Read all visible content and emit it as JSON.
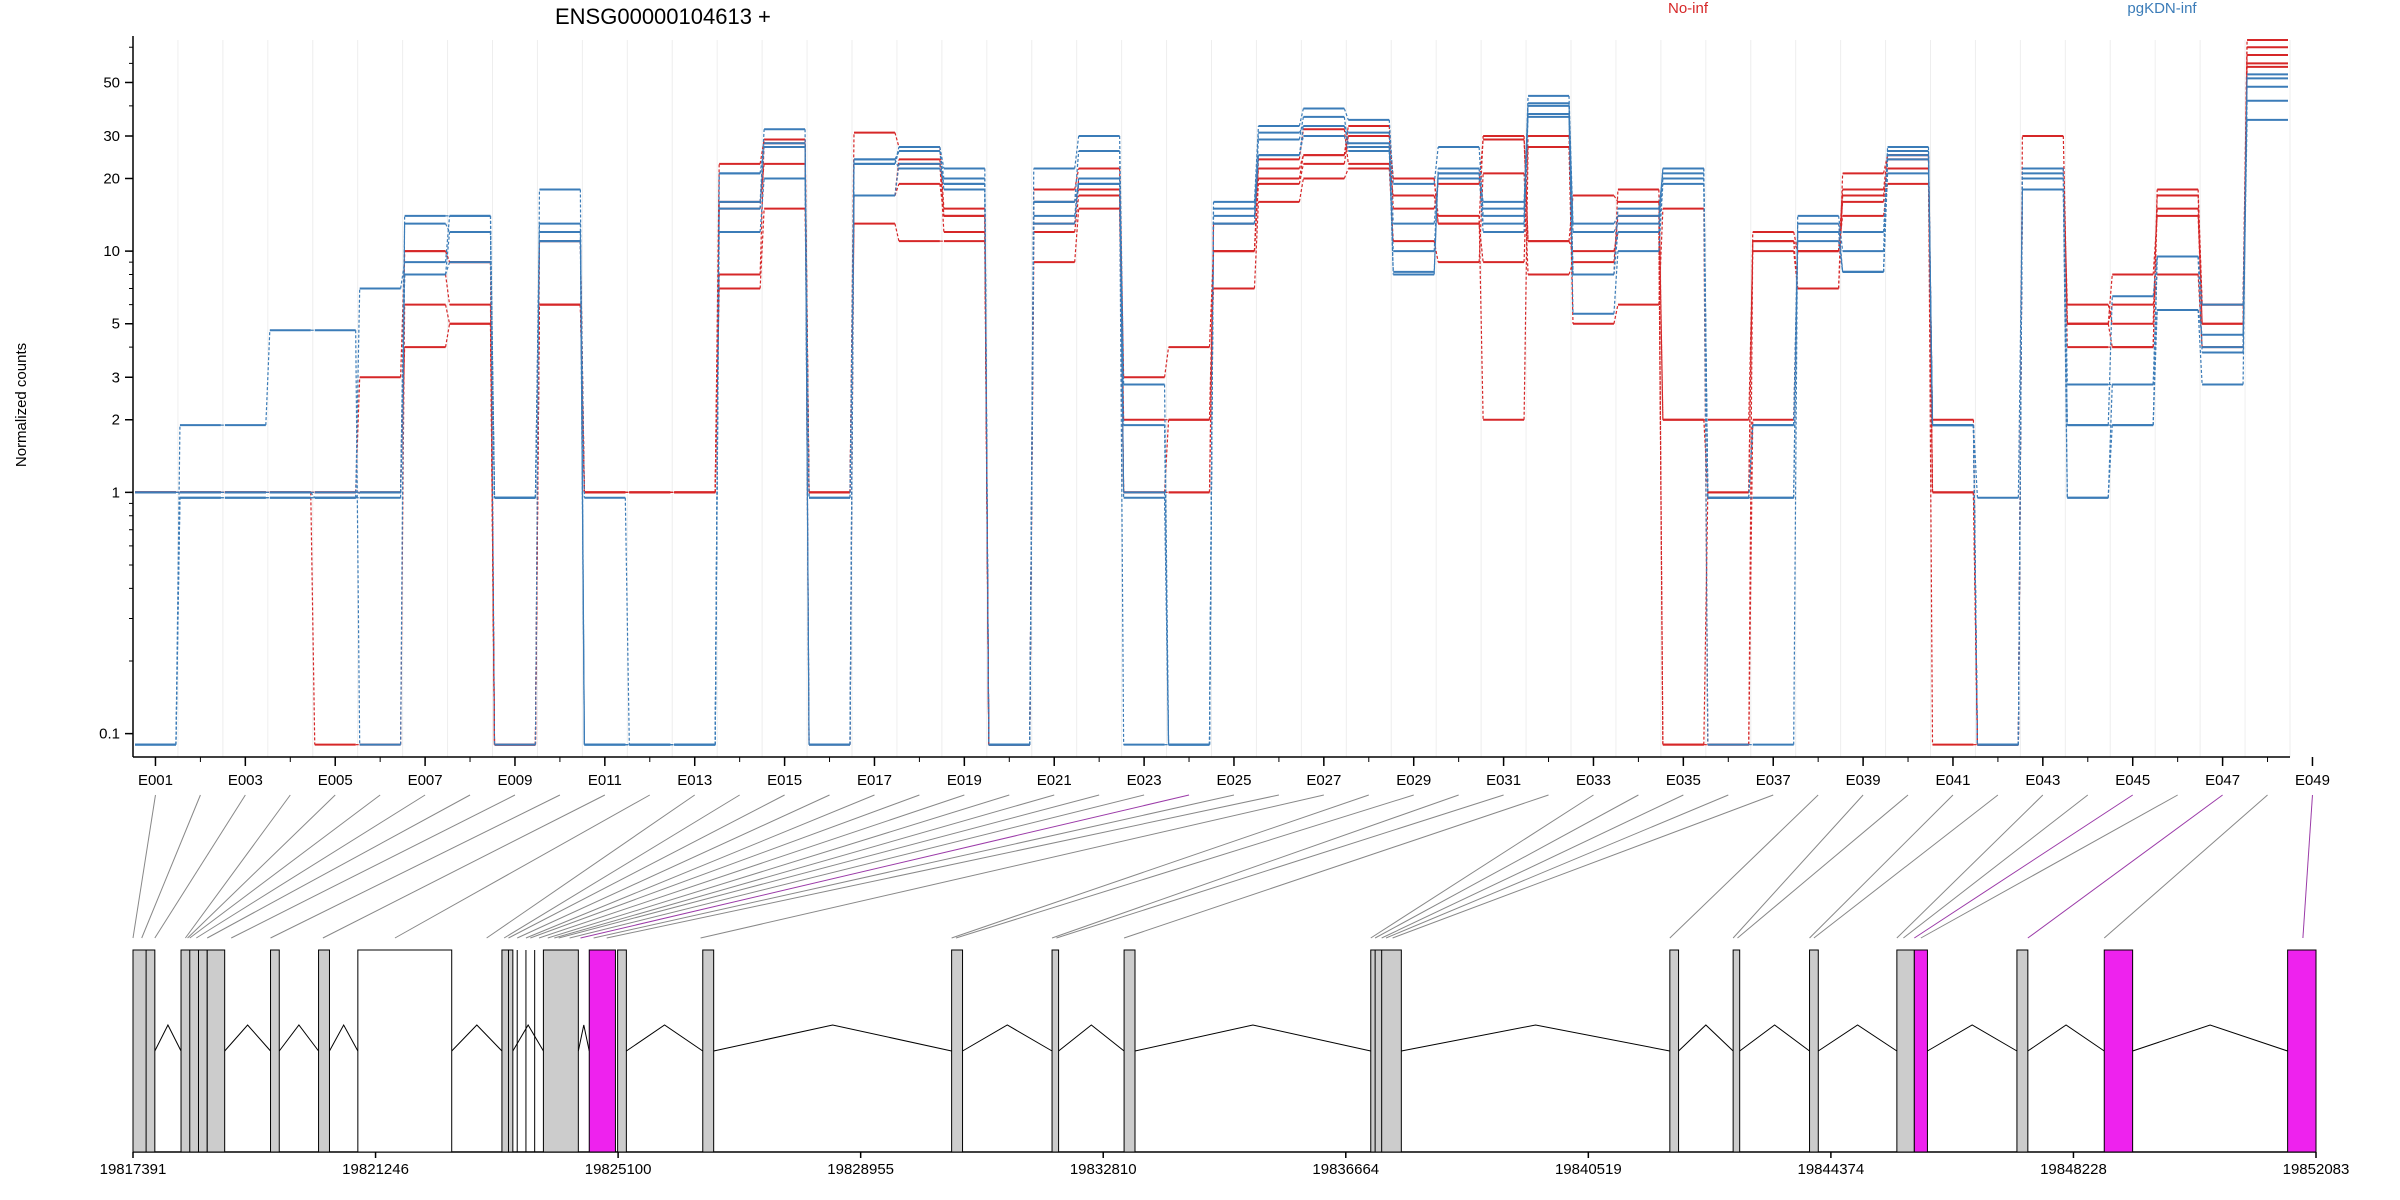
{
  "title": "ENSG00000104613 +",
  "legend": [
    {
      "label": "No-inf",
      "color": "#d62728"
    },
    {
      "label": "pgKDN-inf",
      "color": "#3b7cb8"
    }
  ],
  "colors": {
    "exon_fill": "#cccccc",
    "exon_highlight": "#ee22ee",
    "axis": "#000000",
    "connector": "#888888",
    "connector_highlight": "#9b3ba8"
  },
  "chart_data": {
    "type": "line",
    "ylabel": "Normalized counts",
    "yscale": "log",
    "ylim": [
      0.08,
      75
    ],
    "yticks": [
      0.1,
      1,
      2,
      3,
      5,
      10,
      20,
      30,
      50
    ],
    "ytick_labels": [
      "0.1",
      "1",
      "2",
      "3",
      "5",
      "10",
      "20",
      "30",
      "50"
    ],
    "grid": "vertical lines at exon boundaries",
    "exon_labels": [
      "E001",
      "E003",
      "E005",
      "E007",
      "E009",
      "E011",
      "E013",
      "E015",
      "E017",
      "E019",
      "E021",
      "E023",
      "E025",
      "E027",
      "E029",
      "E031",
      "E033",
      "E035",
      "E037",
      "E039",
      "E041",
      "E043",
      "E045",
      "E047",
      "E049"
    ],
    "series": [
      {
        "group": "No-inf",
        "values": [
          1,
          1,
          1,
          1,
          1,
          3,
          10,
          9,
          0.09,
          6,
          1,
          1,
          1,
          8,
          29,
          1,
          31,
          27,
          15,
          0.09,
          18,
          22,
          3,
          4,
          10,
          24,
          32,
          23,
          17,
          13,
          30,
          11,
          17,
          16,
          2,
          2,
          10,
          7,
          21,
          25,
          1,
          0.09,
          30,
          5,
          4,
          18,
          6,
          75
        ]
      },
      {
        "group": "No-inf",
        "values": [
          1,
          1,
          1,
          1,
          1,
          1,
          4,
          5,
          0.09,
          11,
          1,
          1,
          1,
          7,
          15,
          1,
          17,
          23,
          12,
          0.09,
          12,
          17,
          2,
          2,
          7,
          16,
          20,
          22,
          11,
          9,
          21,
          8,
          9,
          14,
          0.09,
          1,
          11,
          10,
          16,
          24,
          0.09,
          0.09,
          22,
          4,
          4,
          15,
          5,
          58
        ]
      },
      {
        "group": "No-inf",
        "values": [
          1,
          1,
          1,
          1,
          1,
          1,
          8,
          6,
          0.09,
          6,
          1,
          1,
          1,
          16,
          23,
          1,
          13,
          11,
          11,
          0.09,
          9,
          15,
          1,
          2,
          10,
          19,
          23,
          30,
          20,
          14,
          2,
          27,
          5,
          6,
          15,
          0.09,
          2,
          10,
          14,
          19,
          1,
          0.09,
          18,
          5,
          8,
          14,
          5,
          60
        ]
      },
      {
        "group": "No-inf",
        "values": [
          1,
          1,
          1,
          1,
          0.09,
          0.09,
          6,
          5,
          0.09,
          6,
          1,
          1,
          1,
          23,
          29,
          1,
          17,
          19,
          14,
          0.09,
          13,
          20,
          1,
          1,
          13,
          22,
          25,
          33,
          15,
          19,
          29,
          11,
          10,
          12,
          0.09,
          0.09,
          11,
          7,
          17,
          22,
          1,
          0.09,
          18,
          5,
          6,
          8,
          4,
          65
        ]
      },
      {
        "group": "No-inf",
        "values": [
          1,
          1,
          1,
          1,
          1,
          1,
          10,
          9,
          0.09,
          11,
          1,
          1,
          1,
          15,
          28,
          0.09,
          17,
          24,
          14,
          0.09,
          16,
          18,
          1,
          1,
          10,
          20,
          25,
          30,
          20,
          13,
          9,
          30,
          8,
          18,
          2,
          1,
          12,
          10,
          18,
          25,
          2,
          0.09,
          22,
          6,
          5,
          17,
          6,
          70
        ]
      },
      {
        "group": "pgKDN-inf",
        "values": [
          0.09,
          1.9,
          1.9,
          4.7,
          4.7,
          0.09,
          14,
          14,
          0.09,
          18,
          0.09,
          0.09,
          0.09,
          16,
          32,
          0.09,
          23,
          27,
          22,
          0.09,
          22,
          30,
          2.8,
          0.09,
          16,
          33,
          39,
          35,
          19,
          27,
          14,
          44,
          13,
          14,
          22,
          0.09,
          0.09,
          14,
          10,
          27,
          1.9,
          0.09,
          20,
          1.9,
          6.5,
          9.5,
          6,
          48
        ]
      },
      {
        "group": "pgKDN-inf",
        "values": [
          1,
          1,
          1,
          1,
          1,
          1,
          13,
          12,
          0.95,
          13,
          0.09,
          0.09,
          0.09,
          21,
          27,
          0.09,
          24,
          22,
          19,
          0.09,
          16,
          26,
          1,
          0.09,
          15,
          29,
          36,
          27,
          8.2,
          21,
          16,
          40,
          8,
          15,
          21,
          0.95,
          1.9,
          12,
          8.2,
          24,
          1.9,
          0.09,
          18,
          1.9,
          1.9,
          9.5,
          4,
          35
        ]
      },
      {
        "group": "pgKDN-inf",
        "values": [
          0.09,
          0.95,
          0.95,
          0.95,
          0.95,
          1,
          8,
          9,
          0.95,
          11,
          0.09,
          0.09,
          0.09,
          12,
          20,
          0.95,
          17,
          23,
          19,
          0.09,
          14,
          20,
          1.9,
          0.09,
          13,
          25,
          30,
          26,
          10,
          21,
          12,
          37,
          5.5,
          10,
          19,
          0.95,
          1.9,
          11,
          8.2,
          21,
          1.9,
          0.95,
          18,
          0.95,
          1.9,
          5.7,
          2.8,
          54
        ]
      },
      {
        "group": "pgKDN-inf",
        "values": [
          1,
          1,
          1,
          1,
          0.95,
          7,
          9,
          14,
          0.95,
          11,
          0.95,
          0.09,
          0.09,
          15,
          28,
          0.95,
          24,
          26,
          20,
          0.09,
          13,
          19,
          0.95,
          0.09,
          13,
          31,
          33,
          28,
          8,
          22,
          13,
          36,
          8,
          12,
          20,
          0.95,
          0.95,
          13,
          8.2,
          25,
          1.9,
          0.09,
          22,
          0.95,
          2.8,
          5.7,
          4.5,
          42
        ]
      },
      {
        "group": "pgKDN-inf",
        "values": [
          0.09,
          0.95,
          0.95,
          0.95,
          0.95,
          0.95,
          8,
          12,
          0.95,
          12,
          0.09,
          0.09,
          0.09,
          21,
          27,
          0.09,
          23,
          26,
          18,
          0.09,
          16,
          19,
          0.09,
          0.09,
          14,
          25,
          33,
          31,
          13,
          20,
          15,
          41,
          12,
          13,
          22,
          0.95,
          0.95,
          12,
          12,
          26,
          1.9,
          0.09,
          21,
          2.8,
          2.8,
          9.5,
          3.8,
          52
        ]
      }
    ],
    "gene_model": {
      "coordinate_labels": [
        "19817391",
        "19821246",
        "19825100",
        "19828955",
        "19832810",
        "19836664",
        "19840519",
        "19844374",
        "19848228",
        "19852083"
      ],
      "exons": [
        {
          "start": 0.0,
          "end": 0.01,
          "highlight": false
        },
        {
          "start": 0.022,
          "end": 0.034,
          "highlight": false
        },
        {
          "start": 0.034,
          "end": 0.042,
          "highlight": false
        },
        {
          "start": 0.063,
          "end": 0.067,
          "highlight": false
        },
        {
          "start": 0.085,
          "end": 0.09,
          "highlight": false
        },
        {
          "start": 0.103,
          "end": 0.146,
          "highlight": false
        },
        {
          "start": 0.169,
          "end": 0.174,
          "highlight": false
        },
        {
          "start": 0.188,
          "end": 0.204,
          "highlight": false
        },
        {
          "start": 0.209,
          "end": 0.221,
          "highlight": true
        },
        {
          "start": 0.222,
          "end": 0.226,
          "highlight": false
        },
        {
          "start": 0.261,
          "end": 0.266,
          "highlight": false
        },
        {
          "start": 0.375,
          "end": 0.38,
          "highlight": false
        },
        {
          "start": 0.421,
          "end": 0.424,
          "highlight": false
        },
        {
          "start": 0.454,
          "end": 0.459,
          "highlight": false
        },
        {
          "start": 0.567,
          "end": 0.581,
          "highlight": false
        },
        {
          "start": 0.704,
          "end": 0.708,
          "highlight": false
        },
        {
          "start": 0.733,
          "end": 0.736,
          "highlight": false
        },
        {
          "start": 0.768,
          "end": 0.772,
          "highlight": false
        },
        {
          "start": 0.808,
          "end": 0.816,
          "highlight": false
        },
        {
          "start": 0.816,
          "end": 0.822,
          "highlight": true
        },
        {
          "start": 0.863,
          "end": 0.868,
          "highlight": false
        },
        {
          "start": 0.903,
          "end": 0.916,
          "highlight": true
        },
        {
          "start": 0.987,
          "end": 1.0,
          "highlight": true
        }
      ],
      "exon_map": [
        0.0,
        0.004,
        0.01,
        0.024,
        0.025,
        0.026,
        0.029,
        0.034,
        0.045,
        0.063,
        0.087,
        0.12,
        0.162,
        0.17,
        0.172,
        0.176,
        0.18,
        0.182,
        0.186,
        0.19,
        0.193,
        0.195,
        0.2,
        0.205,
        0.211,
        0.217,
        0.26,
        0.375,
        0.377,
        0.421,
        0.423,
        0.454,
        0.567,
        0.569,
        0.572,
        0.574,
        0.577,
        0.704,
        0.733,
        0.735,
        0.768,
        0.77,
        0.808,
        0.811,
        0.816,
        0.819,
        0.868,
        0.903,
        0.994
      ],
      "highlight_connectors": [
        23,
        44,
        46,
        48
      ]
    }
  }
}
